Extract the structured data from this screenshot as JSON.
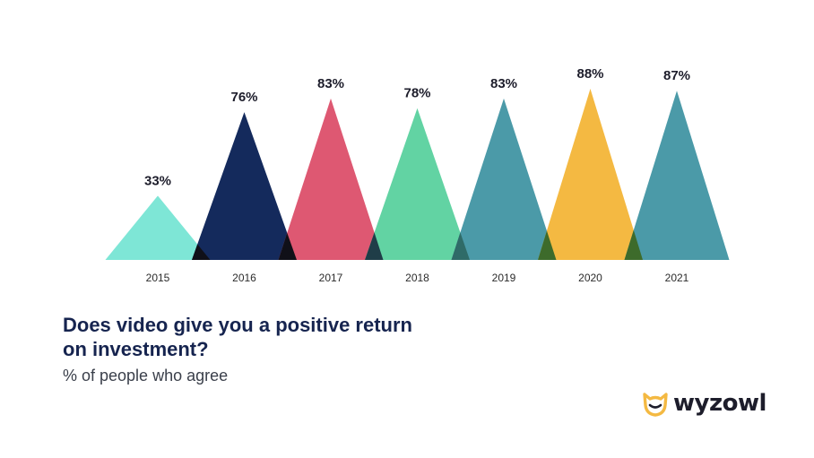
{
  "chart_data": {
    "type": "bar",
    "mark": "triangle",
    "title": "Does video give you a positive return on investment?",
    "subtitle": "% of people who agree",
    "categories": [
      "2015",
      "2016",
      "2017",
      "2018",
      "2019",
      "2020",
      "2021"
    ],
    "values": [
      33,
      76,
      83,
      78,
      83,
      88,
      87
    ],
    "value_labels": [
      "33%",
      "76%",
      "83%",
      "78%",
      "83%",
      "88%",
      "87%"
    ],
    "colors": [
      "#7ee6d6",
      "#142a5c",
      "#de5872",
      "#62d3a3",
      "#4b9aa8",
      "#f4b942",
      "#4b9aa8"
    ],
    "overlap_colors": [
      "#101018",
      "#101018",
      "#1f3d48",
      "#2f6b68",
      "#3d6b2b",
      "#3d6b2b"
    ],
    "ylim": [
      0,
      100
    ],
    "grid": false,
    "legend": "none"
  },
  "brand": {
    "name": "wyzowl",
    "logo_icon": "owl-icon",
    "logo_color": "#f4b942"
  }
}
